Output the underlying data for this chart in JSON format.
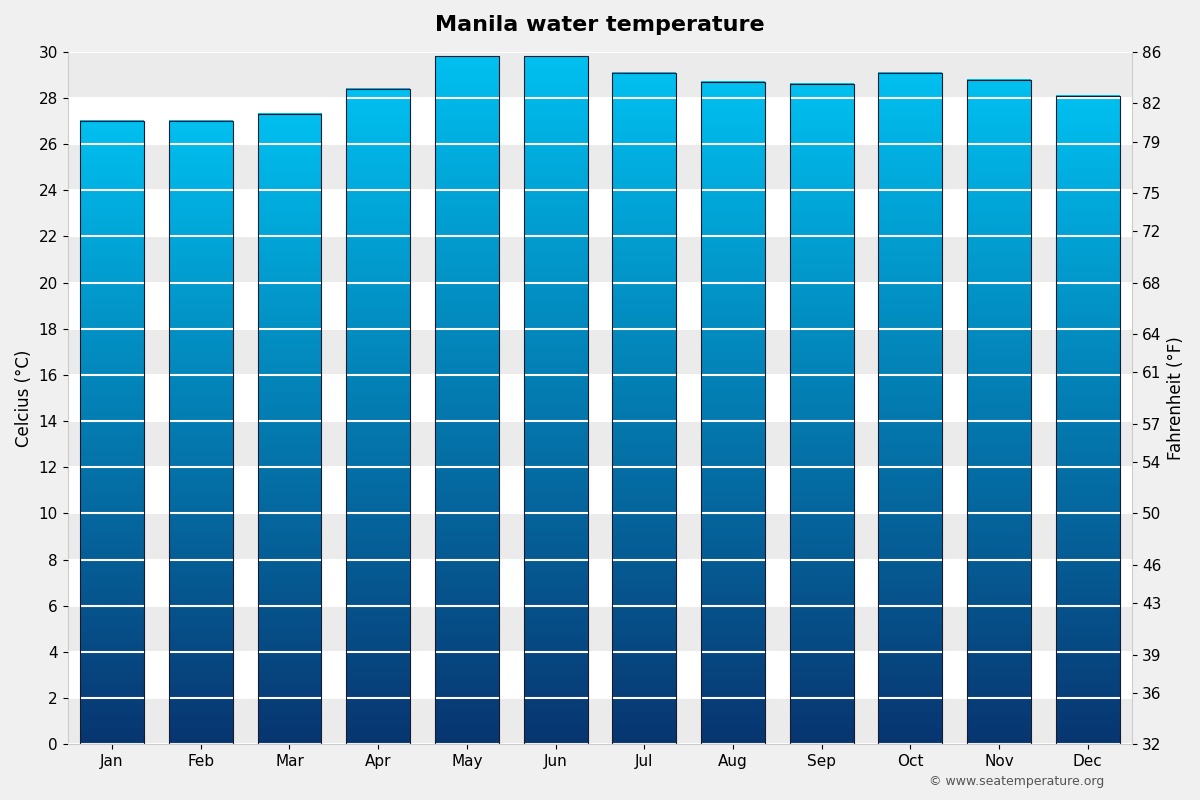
{
  "title": "Manila water temperature",
  "months": [
    "Jan",
    "Feb",
    "Mar",
    "Apr",
    "May",
    "Jun",
    "Jul",
    "Aug",
    "Sep",
    "Oct",
    "Nov",
    "Dec"
  ],
  "values_c": [
    27.0,
    27.0,
    27.3,
    28.4,
    29.8,
    29.8,
    29.1,
    28.7,
    28.6,
    29.1,
    28.8,
    28.1
  ],
  "ylabel_left": "Celcius (°C)",
  "ylabel_right": "Fahrenheit (°F)",
  "ylim_left": [
    0,
    30
  ],
  "yticks_left": [
    0,
    2,
    4,
    6,
    8,
    10,
    12,
    14,
    16,
    18,
    20,
    22,
    24,
    26,
    28,
    30
  ],
  "yticks_right": [
    32,
    36,
    39,
    43,
    46,
    50,
    54,
    57,
    61,
    64,
    68,
    72,
    75,
    79,
    82,
    86
  ],
  "color_top": "#00c0f0",
  "color_bottom": "#083570",
  "background_color": "#f0f0f0",
  "plot_bg_color": "#ffffff",
  "grid_color": "#e8e8e8",
  "bar_edge_color": "#1a1a2e",
  "watermark": "© www.seatemperature.org",
  "title_fontsize": 16,
  "label_fontsize": 12,
  "tick_fontsize": 11,
  "bar_width": 0.72
}
